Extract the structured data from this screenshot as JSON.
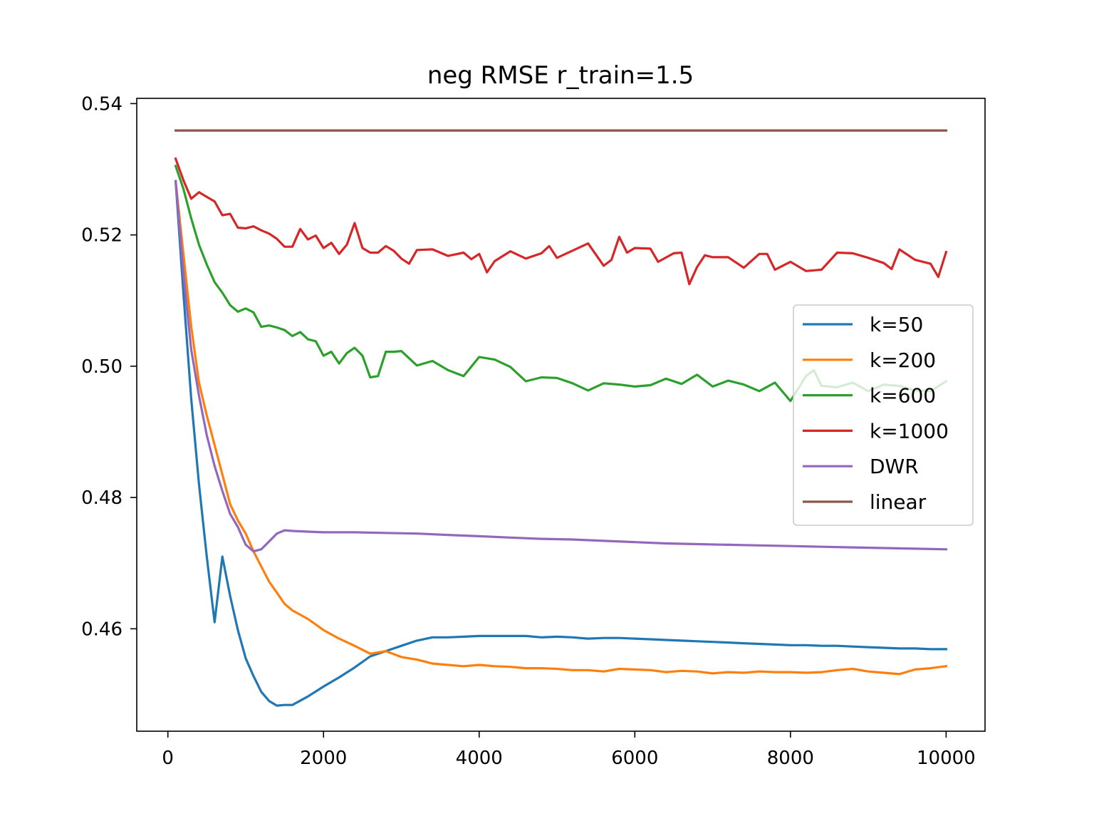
{
  "chart_data": {
    "type": "line",
    "title": "neg RMSE r_train=1.5",
    "xlabel": "",
    "ylabel": "",
    "xlim": [
      -400,
      10500
    ],
    "ylim": [
      0.4444,
      0.5408
    ],
    "xticks": [
      0,
      2000,
      4000,
      6000,
      8000,
      10000
    ],
    "xtick_labels": [
      "0",
      "2000",
      "4000",
      "6000",
      "8000",
      "10000"
    ],
    "yticks": [
      0.46,
      0.48,
      0.5,
      0.52,
      0.54
    ],
    "ytick_labels": [
      "0.46",
      "0.48",
      "0.50",
      "0.52",
      "0.54"
    ],
    "grid": false,
    "legend_position": "center-right",
    "series": [
      {
        "name": "k=50",
        "color": "#1f77b4",
        "x": [
          100,
          200,
          300,
          400,
          500,
          600,
          700,
          800,
          900,
          1000,
          1100,
          1200,
          1300,
          1400,
          1500,
          1600,
          1800,
          2000,
          2200,
          2400,
          2600,
          2800,
          3000,
          3200,
          3400,
          3600,
          3800,
          4000,
          4200,
          4400,
          4600,
          4800,
          5000,
          5200,
          5400,
          5600,
          5800,
          6000,
          6200,
          6400,
          6600,
          6800,
          7000,
          7200,
          7400,
          7600,
          7800,
          8000,
          8200,
          8400,
          8600,
          8800,
          9000,
          9200,
          9400,
          9600,
          9800,
          10000
        ],
        "y": [
          0.5282,
          0.511,
          0.495,
          0.482,
          0.471,
          0.461,
          0.471,
          0.465,
          0.4598,
          0.4555,
          0.4528,
          0.4504,
          0.449,
          0.4483,
          0.4484,
          0.4484,
          0.4497,
          0.4512,
          0.4526,
          0.4541,
          0.4558,
          0.4566,
          0.4574,
          0.4582,
          0.4587,
          0.4587,
          0.4588,
          0.4589,
          0.4589,
          0.4589,
          0.4589,
          0.4587,
          0.4588,
          0.4587,
          0.4585,
          0.4586,
          0.4586,
          0.4585,
          0.4584,
          0.4583,
          0.4582,
          0.4581,
          0.458,
          0.4579,
          0.4578,
          0.4577,
          0.4576,
          0.4575,
          0.4575,
          0.4574,
          0.4574,
          0.4573,
          0.4572,
          0.4571,
          0.457,
          0.457,
          0.4569,
          0.4569
        ]
      },
      {
        "name": "k=200",
        "color": "#ff7f0e",
        "x": [
          100,
          200,
          300,
          400,
          500,
          600,
          700,
          800,
          900,
          1000,
          1100,
          1200,
          1300,
          1400,
          1500,
          1600,
          1800,
          2000,
          2200,
          2400,
          2600,
          2800,
          3000,
          3200,
          3400,
          3600,
          3800,
          4000,
          4200,
          4400,
          4600,
          4800,
          5000,
          5200,
          5400,
          5600,
          5800,
          6000,
          6200,
          6400,
          6600,
          6800,
          7000,
          7200,
          7400,
          7600,
          7800,
          8000,
          8200,
          8400,
          8600,
          8800,
          9000,
          9200,
          9400,
          9600,
          9800,
          10000
        ],
        "y": [
          0.5282,
          0.517,
          0.506,
          0.4975,
          0.4925,
          0.488,
          0.4835,
          0.479,
          0.4765,
          0.4745,
          0.4718,
          0.4695,
          0.4672,
          0.4655,
          0.4638,
          0.4628,
          0.4615,
          0.4598,
          0.4585,
          0.4574,
          0.4562,
          0.4566,
          0.4557,
          0.4553,
          0.4547,
          0.4545,
          0.4543,
          0.4545,
          0.4543,
          0.4542,
          0.454,
          0.454,
          0.4539,
          0.4537,
          0.4537,
          0.4535,
          0.4539,
          0.4538,
          0.4537,
          0.4534,
          0.4536,
          0.4535,
          0.4532,
          0.4534,
          0.4533,
          0.4535,
          0.4534,
          0.4534,
          0.4533,
          0.4534,
          0.4537,
          0.4539,
          0.4535,
          0.4533,
          0.4531,
          0.4538,
          0.454,
          0.4543
        ]
      },
      {
        "name": "k=600",
        "color": "#2ca02c",
        "x": [
          100,
          200,
          300,
          400,
          500,
          600,
          700,
          800,
          900,
          1000,
          1100,
          1200,
          1300,
          1400,
          1500,
          1600,
          1700,
          1800,
          1900,
          2000,
          2100,
          2200,
          2300,
          2400,
          2500,
          2600,
          2700,
          2800,
          2900,
          3000,
          3200,
          3400,
          3600,
          3800,
          4000,
          4200,
          4400,
          4600,
          4800,
          5000,
          5200,
          5400,
          5600,
          5800,
          6000,
          6200,
          6400,
          6600,
          6800,
          7000,
          7200,
          7400,
          7600,
          7800,
          8000,
          8200,
          8300,
          8400,
          8600,
          8800,
          9000,
          9200,
          9400,
          9600,
          9800,
          10000
        ],
        "y": [
          0.5305,
          0.527,
          0.5225,
          0.5185,
          0.5155,
          0.5128,
          0.5112,
          0.5093,
          0.5083,
          0.5088,
          0.5082,
          0.506,
          0.5062,
          0.5059,
          0.5055,
          0.5046,
          0.5052,
          0.5041,
          0.5038,
          0.5016,
          0.5022,
          0.5004,
          0.502,
          0.5028,
          0.5016,
          0.4983,
          0.4985,
          0.5022,
          0.5022,
          0.5023,
          0.5001,
          0.5008,
          0.4994,
          0.4985,
          0.5014,
          0.501,
          0.4999,
          0.4977,
          0.4983,
          0.4982,
          0.4974,
          0.4963,
          0.4974,
          0.4972,
          0.4969,
          0.4971,
          0.4981,
          0.4973,
          0.4987,
          0.4969,
          0.4978,
          0.4972,
          0.4962,
          0.4975,
          0.4947,
          0.4985,
          0.4994,
          0.497,
          0.4968,
          0.4975,
          0.4962,
          0.4972,
          0.497,
          0.4963,
          0.4962,
          0.4977
        ]
      },
      {
        "name": "k=1000",
        "color": "#d62728",
        "x": [
          100,
          200,
          300,
          400,
          500,
          600,
          700,
          800,
          900,
          1000,
          1100,
          1200,
          1300,
          1400,
          1500,
          1600,
          1700,
          1800,
          1900,
          2000,
          2100,
          2200,
          2300,
          2400,
          2500,
          2600,
          2700,
          2800,
          2900,
          3000,
          3100,
          3200,
          3400,
          3600,
          3800,
          3900,
          4000,
          4100,
          4200,
          4400,
          4600,
          4800,
          4900,
          5000,
          5200,
          5400,
          5600,
          5700,
          5800,
          5900,
          6000,
          6200,
          6300,
          6500,
          6600,
          6700,
          6800,
          6900,
          7000,
          7200,
          7400,
          7600,
          7700,
          7800,
          8000,
          8200,
          8400,
          8600,
          8800,
          9000,
          9200,
          9300,
          9400,
          9600,
          9800,
          9900,
          10000
        ],
        "y": [
          0.5316,
          0.5283,
          0.5255,
          0.5265,
          0.5258,
          0.5251,
          0.523,
          0.5232,
          0.5211,
          0.521,
          0.5213,
          0.5207,
          0.5202,
          0.5194,
          0.5182,
          0.5182,
          0.5209,
          0.5193,
          0.5199,
          0.518,
          0.5188,
          0.5171,
          0.5185,
          0.5218,
          0.518,
          0.5173,
          0.5173,
          0.5183,
          0.5176,
          0.5164,
          0.5156,
          0.5177,
          0.5178,
          0.5168,
          0.5173,
          0.5163,
          0.5171,
          0.5143,
          0.516,
          0.5175,
          0.5164,
          0.5172,
          0.5183,
          0.5165,
          0.5176,
          0.5187,
          0.5153,
          0.5162,
          0.5197,
          0.5173,
          0.518,
          0.5179,
          0.5159,
          0.5172,
          0.5173,
          0.5125,
          0.5151,
          0.5169,
          0.5166,
          0.5166,
          0.515,
          0.5171,
          0.5171,
          0.5147,
          0.5159,
          0.5145,
          0.5147,
          0.5173,
          0.5172,
          0.5165,
          0.5157,
          0.5148,
          0.5178,
          0.5162,
          0.5156,
          0.5136,
          0.5174
        ]
      },
      {
        "name": "DWR",
        "color": "#9467bd",
        "x": [
          100,
          200,
          300,
          400,
          500,
          600,
          700,
          800,
          900,
          1000,
          1100,
          1200,
          1300,
          1400,
          1500,
          1600,
          1800,
          2000,
          2400,
          2800,
          3200,
          3600,
          4000,
          4400,
          4800,
          5200,
          5600,
          6000,
          6400,
          6800,
          7200,
          7600,
          8000,
          8400,
          8800,
          9200,
          9600,
          10000
        ],
        "y": [
          0.5282,
          0.514,
          0.5025,
          0.4955,
          0.4895,
          0.4848,
          0.481,
          0.4775,
          0.4755,
          0.4728,
          0.4718,
          0.4721,
          0.4733,
          0.4745,
          0.475,
          0.4749,
          0.4748,
          0.4747,
          0.4747,
          0.4746,
          0.4745,
          0.4743,
          0.4741,
          0.4739,
          0.4737,
          0.4736,
          0.4734,
          0.4732,
          0.473,
          0.4729,
          0.4728,
          0.4727,
          0.4726,
          0.4725,
          0.4724,
          0.4723,
          0.4722,
          0.4721
        ]
      },
      {
        "name": "linear",
        "color": "#8c564b",
        "x": [
          100,
          10000
        ],
        "y": [
          0.5359,
          0.5359
        ]
      }
    ]
  }
}
